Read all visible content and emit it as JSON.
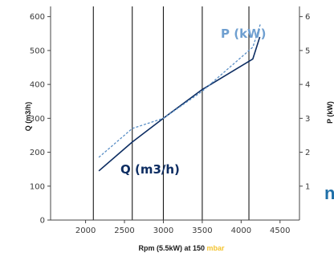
{
  "chart_data": {
    "type": "line",
    "xlabel": "Rpm (5.5kW) at 150",
    "xlabel_unit": "mbar",
    "ylabel": "Q (m3/h)",
    "y2label": "P (kW)",
    "xlim": [
      1550,
      4750
    ],
    "ylim": [
      0,
      630
    ],
    "y2lim": [
      0,
      6.3
    ],
    "xticks": [
      "2000",
      "2500",
      "3000",
      "3500",
      "4000",
      "4500"
    ],
    "yticks": [
      "0",
      "100",
      "200",
      "300",
      "400",
      "500",
      "600"
    ],
    "y2ticks": [
      "1",
      "2",
      "3",
      "4",
      "5",
      "6"
    ],
    "vertical_lines": [
      2100,
      2600,
      3000,
      3500,
      4100
    ],
    "series": [
      {
        "name": "Q (m3/h)",
        "axis": "left",
        "style": "solid",
        "color": "#0d2d62",
        "x": [
          2170,
          2600,
          3000,
          3500,
          4150,
          4240
        ],
        "y": [
          145,
          230,
          300,
          385,
          475,
          540
        ]
      },
      {
        "name": "P (kW)",
        "axis": "right",
        "style": "dashed",
        "color": "#5a8fc6",
        "x": [
          2170,
          2600,
          3000,
          3500,
          4150,
          4250
        ],
        "y": [
          1.85,
          2.7,
          3.0,
          3.8,
          5.1,
          5.8
        ]
      }
    ],
    "edge_glyph": "n"
  }
}
